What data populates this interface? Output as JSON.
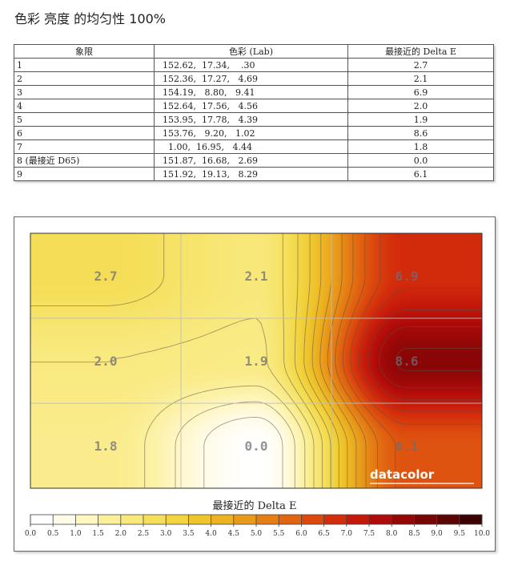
{
  "title": "色彩 亮度 的均匀性 100%",
  "table": {
    "headers": [
      "象限",
      "色彩 (Lab)",
      "最接近的 Delta E"
    ],
    "rows": [
      {
        "quadrant": "1",
        "lab": "152.62,  17.34,    .30",
        "delta_e": "2.7"
      },
      {
        "quadrant": "2",
        "lab": "152.36,  17.27,   4.69",
        "delta_e": "2.1"
      },
      {
        "quadrant": "3",
        "lab": "154.19,   8.80,   9.41",
        "delta_e": "6.9"
      },
      {
        "quadrant": "4",
        "lab": "152.64,  17.56,   4.56",
        "delta_e": "2.0"
      },
      {
        "quadrant": "5",
        "lab": "153.95,  17.78,   4.39",
        "delta_e": "1.9"
      },
      {
        "quadrant": "6",
        "lab": "153.76,   9.20,   1.02",
        "delta_e": "8.6"
      },
      {
        "quadrant": "7",
        "lab": "  1.00,  16.95,   4.44",
        "delta_e": "1.8"
      },
      {
        "quadrant": "8 (最接近 D65)",
        "lab": "151.87,  16.68,   2.69",
        "delta_e": "0.0"
      },
      {
        "quadrant": "9",
        "lab": "151.92,  19.13,   8.29",
        "delta_e": "6.1"
      }
    ]
  },
  "chart_data": {
    "type": "heatmap",
    "grid_rows": 3,
    "grid_cols": 3,
    "values": [
      [
        2.7,
        2.1,
        6.9
      ],
      [
        2.0,
        1.9,
        8.6
      ],
      [
        1.8,
        0.0,
        6.1
      ]
    ],
    "value_labels": [
      [
        "2.7",
        "2.1",
        "6.9"
      ],
      [
        "2.0",
        "1.9",
        "8.6"
      ],
      [
        "1.8",
        "0.0",
        "6.1"
      ]
    ],
    "colorbar": {
      "label": "最接近的 Delta E",
      "min": 0,
      "max": 10,
      "ticks": [
        "0.0",
        "0.5",
        "1.0",
        "1.5",
        "2.0",
        "2.5",
        "3.0",
        "3.5",
        "4.0",
        "4.5",
        "5.0",
        "5.5",
        "6.0",
        "6.5",
        "7.0",
        "7.5",
        "8.0",
        "8.5",
        "9.0",
        "9.5",
        "10.0"
      ],
      "colors": [
        "#ffffff",
        "#fffbe6",
        "#fff6c0",
        "#fbef99",
        "#f8e87a",
        "#f5df5a",
        "#f2d440",
        "#efc52e",
        "#ecb222",
        "#e99a1a",
        "#e57f15",
        "#e16411",
        "#dc480e",
        "#d42d0c",
        "#c4190b",
        "#ae0b0a",
        "#930707",
        "#770505",
        "#5a0404",
        "#3c0202"
      ]
    },
    "brand": "datacolor",
    "grid": true
  }
}
